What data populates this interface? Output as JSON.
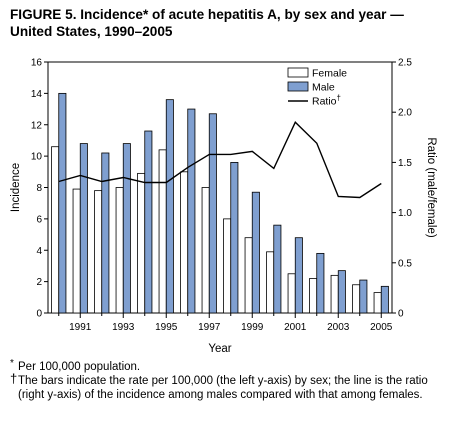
{
  "figure": {
    "title": "FIGURE 5. Incidence* of acute hepatitis A, by sex and year — United States, 1990–2005",
    "footnotes": [
      {
        "mark": "*",
        "text": "Per 100,000 population."
      },
      {
        "mark": "†",
        "text": "The bars indicate the rate per 100,000 (the left y-axis) by sex; the line is the ratio (right y-axis) of the incidence among males compared with that among females."
      }
    ]
  },
  "chart_data": {
    "type": "bar",
    "title": "FIGURE 5. Incidence* of acute hepatitis A, by sex and year — United States, 1990–2005",
    "xlabel": "Year",
    "ylabel": "Incidence",
    "y2label": "Ratio (male/female)",
    "ylim": [
      0,
      16
    ],
    "y2lim": [
      0,
      2.5
    ],
    "yticks": [
      "0",
      "2",
      "4",
      "6",
      "8",
      "10",
      "12",
      "14",
      "16"
    ],
    "y2ticks": [
      "0",
      "0.5",
      "1.0",
      "1.5",
      "2.0",
      "2.5"
    ],
    "categories": [
      "1990",
      "1991",
      "1992",
      "1993",
      "1994",
      "1995",
      "1996",
      "1997",
      "1998",
      "1999",
      "2000",
      "2001",
      "2002",
      "2003",
      "2004",
      "2005"
    ],
    "xtick_labels": [
      "1991",
      "1993",
      "1995",
      "1997",
      "1999",
      "2001",
      "2003",
      "2005"
    ],
    "grid": false,
    "legend_position": "top-right",
    "series": [
      {
        "name": "Female",
        "kind": "bar",
        "axis": "left",
        "color": "#ffffff",
        "values": [
          10.6,
          7.9,
          7.8,
          8.0,
          8.9,
          10.4,
          9.0,
          8.0,
          6.0,
          4.8,
          3.9,
          2.5,
          2.2,
          2.4,
          1.8,
          1.3
        ]
      },
      {
        "name": "Male",
        "kind": "bar",
        "axis": "left",
        "color": "#7f9fd0",
        "values": [
          14.0,
          10.8,
          10.2,
          10.8,
          11.6,
          13.6,
          13.0,
          12.7,
          9.6,
          7.7,
          5.6,
          4.8,
          3.8,
          2.7,
          2.1,
          1.7
        ]
      },
      {
        "name": "Ratio",
        "name_mark": "†",
        "kind": "line",
        "axis": "right",
        "color": "#000000",
        "values": [
          1.31,
          1.37,
          1.31,
          1.35,
          1.3,
          1.3,
          1.45,
          1.58,
          1.58,
          1.61,
          1.44,
          1.9,
          1.69,
          1.16,
          1.15,
          1.29
        ]
      }
    ]
  }
}
